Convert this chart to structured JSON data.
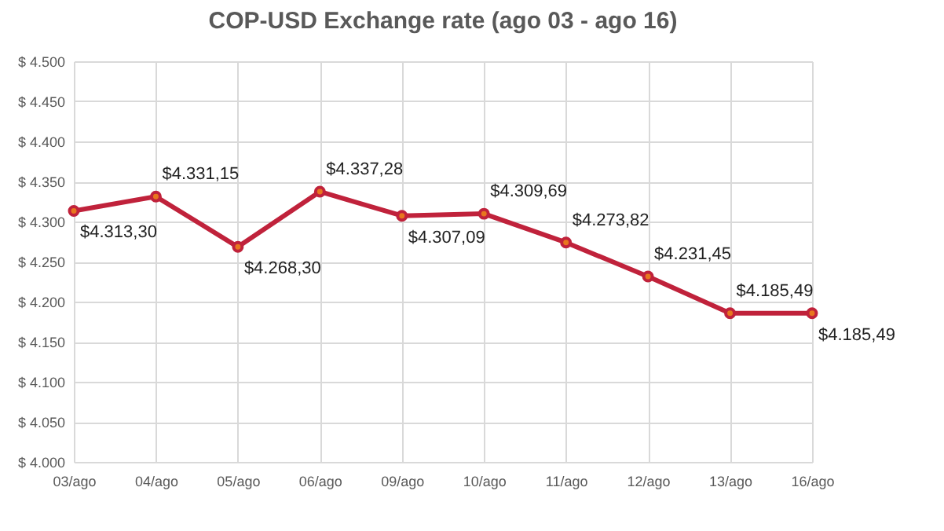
{
  "chart_data": {
    "type": "line",
    "title": "COP-USD Exchange rate (ago 03 - ago 16)",
    "categories": [
      "03/ago",
      "04/ago",
      "05/ago",
      "06/ago",
      "09/ago",
      "10/ago",
      "11/ago",
      "12/ago",
      "13/ago",
      "16/ago"
    ],
    "series": [
      {
        "color": "#c0223b",
        "values": [
          4313.3,
          4331.15,
          4268.3,
          4337.28,
          4307.09,
          4309.69,
          4273.82,
          4231.45,
          4185.49,
          4185.49
        ],
        "value_labels": [
          "$4.313,30",
          "$4.331,15",
          "$4.268,30",
          "$4.337,28",
          "$4.307,09",
          "$4.309,69",
          "$4.273,82",
          "$4.231,45",
          "$4.185,49",
          "$4.185,49"
        ]
      }
    ],
    "ylim": [
      4000,
      4500
    ],
    "yticks": [
      {
        "value": 4000,
        "label": "$ 4.000"
      },
      {
        "value": 4050,
        "label": "$ 4.050"
      },
      {
        "value": 4100,
        "label": "$ 4.100"
      },
      {
        "value": 4150,
        "label": "$ 4.150"
      },
      {
        "value": 4200,
        "label": "$ 4.200"
      },
      {
        "value": 4250,
        "label": "$ 4.250"
      },
      {
        "value": 4300,
        "label": "$ 4.300"
      },
      {
        "value": 4350,
        "label": "$ 4.350"
      },
      {
        "value": 4400,
        "label": "$ 4.400"
      },
      {
        "value": 4450,
        "label": "$ 4.450"
      },
      {
        "value": 4500,
        "label": "$ 4.500"
      }
    ],
    "grid": true,
    "marker": "circle",
    "legend": false
  }
}
